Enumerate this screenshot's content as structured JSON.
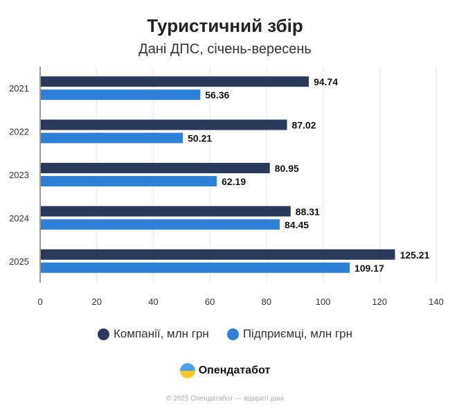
{
  "chart_data": {
    "type": "bar",
    "orientation": "horizontal",
    "title": "Туристичний збір",
    "subtitle": "Дані ДПС, січень-вересень",
    "categories": [
      "2021",
      "2022",
      "2023",
      "2024",
      "2025"
    ],
    "series": [
      {
        "name": "Компанії, млн грн",
        "color": "#2b3a5c",
        "values": [
          94.74,
          87.02,
          80.95,
          88.31,
          125.21
        ],
        "labels": [
          "94.74",
          "87.02",
          "80.95",
          "88.31",
          "125.21"
        ]
      },
      {
        "name": "Підприємці, млн грн",
        "color": "#2f80d8",
        "values": [
          56.36,
          50.21,
          62.19,
          84.45,
          109.17
        ],
        "labels": [
          "56.36",
          "50.21",
          "62.19",
          "84.45",
          "109.17"
        ]
      }
    ],
    "xlim": [
      0,
      140
    ],
    "xticks": [
      "0",
      "20",
      "40",
      "60",
      "80",
      "100",
      "120",
      "140"
    ],
    "grid": true,
    "legend": "bottom"
  },
  "brand": {
    "name": "Опендатабот",
    "copyright": "© 2025 Опендатабот — відкриті дані"
  }
}
